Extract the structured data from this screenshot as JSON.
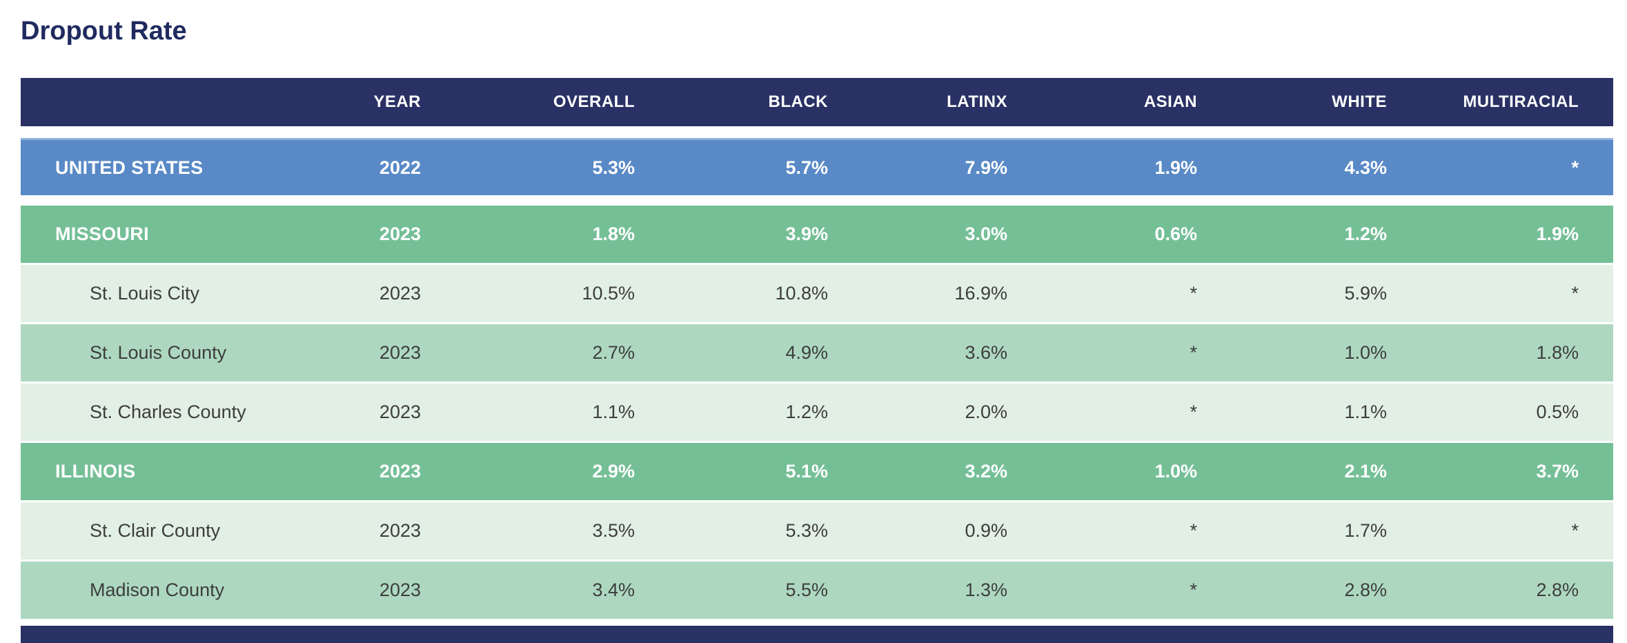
{
  "chart_data": {
    "type": "table",
    "title": "Dropout Rate",
    "columns": [
      "",
      "YEAR",
      "OVERALL",
      "BLACK",
      "LATINX",
      "ASIAN",
      "WHITE",
      "MULTIRACIAL"
    ],
    "rows": [
      {
        "name": "UNITED STATES",
        "year": "2022",
        "overall": "5.3%",
        "black": "5.7%",
        "latinx": "7.9%",
        "asian": "1.9%",
        "white": "4.3%",
        "multiracial": "*",
        "row_style": "national"
      },
      {
        "name": "MISSOURI",
        "year": "2023",
        "overall": "1.8%",
        "black": "3.9%",
        "latinx": "3.0%",
        "asian": "0.6%",
        "white": "1.2%",
        "multiracial": "1.9%",
        "row_style": "state"
      },
      {
        "name": "St. Louis City",
        "year": "2023",
        "overall": "10.5%",
        "black": "10.8%",
        "latinx": "16.9%",
        "asian": "*",
        "white": "5.9%",
        "multiracial": "*",
        "row_style": "county-light"
      },
      {
        "name": "St. Louis County",
        "year": "2023",
        "overall": "2.7%",
        "black": "4.9%",
        "latinx": "3.6%",
        "asian": "*",
        "white": "1.0%",
        "multiracial": "1.8%",
        "row_style": "county-medium"
      },
      {
        "name": "St. Charles County",
        "year": "2023",
        "overall": "1.1%",
        "black": "1.2%",
        "latinx": "2.0%",
        "asian": "*",
        "white": "1.1%",
        "multiracial": "0.5%",
        "row_style": "county-light"
      },
      {
        "name": "ILLINOIS",
        "year": "2023",
        "overall": "2.9%",
        "black": "5.1%",
        "latinx": "3.2%",
        "asian": "1.0%",
        "white": "2.1%",
        "multiracial": "3.7%",
        "row_style": "state"
      },
      {
        "name": "St. Clair County",
        "year": "2023",
        "overall": "3.5%",
        "black": "5.3%",
        "latinx": "0.9%",
        "asian": "*",
        "white": "1.7%",
        "multiracial": "*",
        "row_style": "county-light"
      },
      {
        "name": "Madison County",
        "year": "2023",
        "overall": "3.4%",
        "black": "5.5%",
        "latinx": "1.3%",
        "asian": "*",
        "white": "2.8%",
        "multiracial": "2.8%",
        "row_style": "county-medium"
      }
    ],
    "suppressed_marker": "*",
    "layout": {
      "grid": false,
      "legend": "none",
      "header_position": "top"
    }
  },
  "colors": {
    "title_navy": "#1f2b5f",
    "header_navy": "#2a3164",
    "national_blue": "#5989c6",
    "national_blue_top_border": "#8fb3de",
    "state_green": "#75bf97",
    "county_light_green": "#e1efe5",
    "county_medium_green": "#add8bf",
    "county_text": "#3d3d3d"
  }
}
